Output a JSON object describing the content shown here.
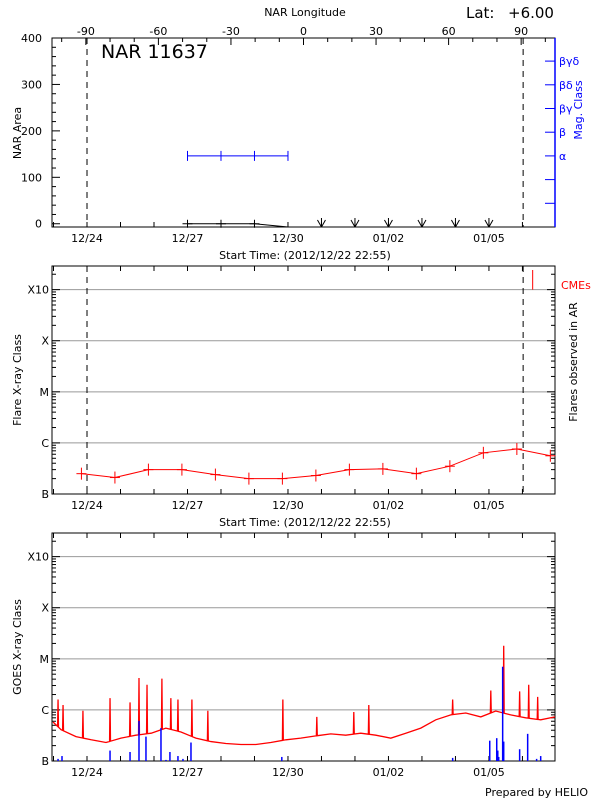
{
  "lat": {
    "label": "Lat:",
    "value": "+6.00"
  },
  "footer": "Prepared by HELIO",
  "colors": {
    "axis": "#000000",
    "mag_class": "#0000ff",
    "flares": "#ff0000",
    "goes_flux": "#ff0000",
    "goes_flares": "#0000ff",
    "cme": "#ff0000",
    "grid": "#999999"
  },
  "chart_data": [
    {
      "type": "line",
      "title": "NAR 11637",
      "top_axis_label": "NAR Longitude",
      "longitude_range": [
        -104,
        104
      ],
      "top_ticks": [
        {
          "value": -90,
          "label": "-90"
        },
        {
          "value": -60,
          "label": "-60"
        },
        {
          "value": -30,
          "label": "-30"
        },
        {
          "value": 0,
          "label": "0"
        },
        {
          "value": 30,
          "label": "30"
        },
        {
          "value": 60,
          "label": "60"
        },
        {
          "value": 90,
          "label": "90"
        }
      ],
      "xlabel": "Start Time: (2012/12/22 22:55)",
      "xlim": [
        "2012-12-22T22:55",
        "2013-01-06T23:20"
      ],
      "x_ticks": [
        {
          "date": "2012-12-24T00:00",
          "label": "12/24"
        },
        {
          "date": "2012-12-27T00:00",
          "label": "12/27"
        },
        {
          "date": "2012-12-30T00:00",
          "label": "12/30"
        },
        {
          "date": "2013-01-02T00:00",
          "label": "01/02"
        },
        {
          "date": "2013-01-05T00:00",
          "label": "01/05"
        }
      ],
      "ylabel": "NAR Area",
      "ylim": [
        -7,
        400
      ],
      "y_ticks": [
        {
          "value": 0,
          "label": "0"
        },
        {
          "value": 100,
          "label": "100"
        },
        {
          "value": 200,
          "label": "200"
        },
        {
          "value": 300,
          "label": "300"
        },
        {
          "value": 400,
          "label": "400"
        }
      ],
      "right_ylabel": "Mag. Class",
      "mag_class_ticks": [
        {
          "level": 3,
          "label": "α"
        },
        {
          "level": 4,
          "label": "β"
        },
        {
          "level": 5,
          "label": "βγ"
        },
        {
          "level": 6,
          "label": "βδ"
        },
        {
          "level": 7,
          "label": "βγδ"
        }
      ],
      "area_series": [
        {
          "date": "2012-12-27T00:00",
          "value": 0
        },
        {
          "date": "2012-12-28T00:00",
          "value": 0
        },
        {
          "date": "2012-12-29T00:00",
          "value": 0
        },
        {
          "date": "2012-12-30T00:00",
          "value": -7
        }
      ],
      "mag_class_series": [
        {
          "date": "2012-12-27T00:00",
          "class": "α"
        },
        {
          "date": "2012-12-28T00:00",
          "class": "α"
        },
        {
          "date": "2012-12-29T00:00",
          "class": "α"
        },
        {
          "date": "2012-12-30T00:00",
          "class": "α"
        }
      ],
      "no_data_dates": [
        "2012-12-31T00:00",
        "2013-01-01T00:00",
        "2013-01-02T00:00",
        "2013-01-03T00:00",
        "2013-01-04T00:00",
        "2013-01-05T00:00"
      ],
      "reference_lines": [
        "2012-12-24T00:00",
        "2013-01-06T00:30"
      ]
    },
    {
      "type": "line",
      "xlabel": "Start Time: (2012/12/22 22:55)",
      "xlim": [
        "2012-12-22T22:55",
        "2013-01-06T23:20"
      ],
      "x_ticks": [
        {
          "date": "2012-12-24T00:00",
          "label": "12/24"
        },
        {
          "date": "2012-12-27T00:00",
          "label": "12/27"
        },
        {
          "date": "2012-12-30T00:00",
          "label": "12/30"
        },
        {
          "date": "2013-01-02T00:00",
          "label": "01/02"
        },
        {
          "date": "2013-01-05T00:00",
          "label": "01/05"
        }
      ],
      "ylabel": "Flare X-ray Class",
      "yscale": "log",
      "ylim": [
        1e-07,
        0.0029
      ],
      "y_ticks": [
        {
          "value": 1e-07,
          "label": "B"
        },
        {
          "value": 1e-06,
          "label": "C"
        },
        {
          "value": 1e-05,
          "label": "M"
        },
        {
          "value": 0.0001,
          "label": "X"
        },
        {
          "value": 0.001,
          "label": "X10"
        }
      ],
      "grid": true,
      "right_ylabel": "Flares observed in AR",
      "cme_label": "CMEs",
      "cmes": [
        "2013-01-06T07:20"
      ],
      "series": [
        {
          "date": "2012-12-23T20:00",
          "flux": 2.5e-07
        },
        {
          "date": "2012-12-24T20:00",
          "flux": 2.1e-07
        },
        {
          "date": "2012-12-25T20:00",
          "flux": 3e-07
        },
        {
          "date": "2012-12-26T20:00",
          "flux": 3e-07
        },
        {
          "date": "2012-12-27T20:00",
          "flux": 2.4e-07
        },
        {
          "date": "2012-12-28T20:00",
          "flux": 2e-07
        },
        {
          "date": "2012-12-29T20:00",
          "flux": 2e-07
        },
        {
          "date": "2012-12-30T20:00",
          "flux": 2.3e-07
        },
        {
          "date": "2012-12-31T20:00",
          "flux": 3e-07
        },
        {
          "date": "2013-01-01T20:00",
          "flux": 3.1e-07
        },
        {
          "date": "2013-01-02T20:00",
          "flux": 2.5e-07
        },
        {
          "date": "2013-01-03T20:00",
          "flux": 3.5e-07
        },
        {
          "date": "2013-01-04T20:00",
          "flux": 6.4e-07
        },
        {
          "date": "2013-01-05T20:00",
          "flux": 7.6e-07
        },
        {
          "date": "2013-01-06T20:00",
          "flux": 5.6e-07
        }
      ],
      "reference_lines": [
        "2012-12-24T00:00",
        "2013-01-06T00:30"
      ]
    },
    {
      "type": "line",
      "xlim": [
        "2012-12-22T22:55",
        "2013-01-06T23:20"
      ],
      "x_ticks": [
        {
          "date": "2012-12-24T00:00",
          "label": "12/24"
        },
        {
          "date": "2012-12-27T00:00",
          "label": "12/27"
        },
        {
          "date": "2012-12-30T00:00",
          "label": "12/30"
        },
        {
          "date": "2013-01-02T00:00",
          "label": "01/02"
        },
        {
          "date": "2013-01-05T00:00",
          "label": "01/05"
        }
      ],
      "ylabel": "GOES X-ray Class",
      "yscale": "log",
      "ylim": [
        1e-07,
        0.0029
      ],
      "y_ticks": [
        {
          "value": 1e-07,
          "label": "B"
        },
        {
          "value": 1e-06,
          "label": "C"
        },
        {
          "value": 1e-05,
          "label": "M"
        },
        {
          "value": 0.0001,
          "label": "X"
        },
        {
          "value": 0.001,
          "label": "X10"
        }
      ],
      "grid": true,
      "flux_background": [
        [
          "2012-12-22T23:40",
          5.8e-07
        ],
        [
          "2012-12-23T05:25",
          4.1e-07
        ],
        [
          "2012-12-23T16:05",
          3e-07
        ],
        [
          "2012-12-24T03:00",
          2.6e-07
        ],
        [
          "2012-12-24T13:35",
          2.3e-07
        ],
        [
          "2012-12-25T00:20",
          2.8e-07
        ],
        [
          "2012-12-25T11:00",
          3.2e-07
        ],
        [
          "2012-12-25T22:00",
          3.5e-07
        ],
        [
          "2012-12-26T08:30",
          4.4e-07
        ],
        [
          "2012-12-26T19:20",
          3.7e-07
        ],
        [
          "2012-12-27T06:00",
          2.8e-07
        ],
        [
          "2012-12-27T16:50",
          2.4e-07
        ],
        [
          "2012-12-28T03:30",
          2.2e-07
        ],
        [
          "2012-12-28T14:20",
          2.1e-07
        ],
        [
          "2012-12-29T01:00",
          2.1e-07
        ],
        [
          "2012-12-29T11:40",
          2.3e-07
        ],
        [
          "2012-12-29T22:30",
          2.6e-07
        ],
        [
          "2012-12-30T09:10",
          2.8e-07
        ],
        [
          "2012-12-30T20:00",
          3.1e-07
        ],
        [
          "2012-12-31T06:40",
          3.4e-07
        ],
        [
          "2012-12-31T17:25",
          3.2e-07
        ],
        [
          "2013-01-01T04:10",
          3.5e-07
        ],
        [
          "2013-01-01T14:55",
          3.2e-07
        ],
        [
          "2013-01-02T01:40",
          2.8e-07
        ],
        [
          "2013-01-02T12:25",
          3.5e-07
        ],
        [
          "2013-01-02T23:10",
          4.4e-07
        ],
        [
          "2013-01-03T09:55",
          6.4e-07
        ],
        [
          "2013-01-03T20:40",
          8e-07
        ],
        [
          "2013-01-04T07:25",
          8.7e-07
        ],
        [
          "2013-01-04T18:10",
          7.3e-07
        ],
        [
          "2013-01-05T04:50",
          9.5e-07
        ],
        [
          "2013-01-05T15:35",
          8e-07
        ],
        [
          "2013-01-06T02:20",
          7e-07
        ],
        [
          "2013-01-06T13:05",
          6.4e-07
        ],
        [
          "2013-01-06T23:20",
          7.3e-07
        ]
      ],
      "flux_peaks": [
        [
          "2012-12-23T03:15",
          1.6e-06
        ],
        [
          "2012-12-23T06:50",
          1.25e-06
        ],
        [
          "2012-12-23T21:05",
          9.6e-07
        ],
        [
          "2012-12-24T16:30",
          1.7e-06
        ],
        [
          "2012-12-25T06:50",
          1.4e-06
        ],
        [
          "2012-12-25T13:15",
          4.2e-06
        ],
        [
          "2012-12-25T19:00",
          3.1e-06
        ],
        [
          "2012-12-26T05:40",
          4.1e-06
        ],
        [
          "2012-12-26T12:05",
          1.7e-06
        ],
        [
          "2012-12-26T17:10",
          1.6e-06
        ],
        [
          "2012-12-27T03:10",
          1.6e-06
        ],
        [
          "2012-12-27T14:35",
          9.6e-07
        ],
        [
          "2012-12-29T20:20",
          1.6e-06
        ],
        [
          "2012-12-30T20:40",
          7.3e-07
        ],
        [
          "2012-12-31T23:10",
          9.1e-07
        ],
        [
          "2013-01-01T09:55",
          1.25e-06
        ],
        [
          "2013-01-03T22:00",
          1.6e-06
        ],
        [
          "2013-01-05T01:20",
          2.4e-06
        ],
        [
          "2013-01-05T10:35",
          1.8e-05
        ],
        [
          "2013-01-05T22:00",
          2.3e-06
        ],
        [
          "2013-01-06T04:30",
          3.1e-06
        ],
        [
          "2013-01-06T10:55",
          1.8e-06
        ]
      ],
      "flares": [
        [
          "2012-12-23T03:15",
          1.1e-07
        ],
        [
          "2012-12-23T06:05",
          1.25e-07
        ],
        [
          "2012-12-24T16:30",
          1.6e-07
        ],
        [
          "2012-12-25T06:50",
          1.5e-07
        ],
        [
          "2012-12-25T13:15",
          6.1e-07
        ],
        [
          "2012-12-25T18:15",
          3e-07
        ],
        [
          "2012-12-26T05:00",
          4.4e-07
        ],
        [
          "2012-12-26T08:35",
          1.05e-07
        ],
        [
          "2012-12-26T11:25",
          1.5e-07
        ],
        [
          "2012-12-26T17:10",
          1.25e-07
        ],
        [
          "2012-12-26T20:45",
          1.1e-07
        ],
        [
          "2012-12-27T02:30",
          2.3e-07
        ],
        [
          "2012-12-29T19:35",
          1.2e-07
        ],
        [
          "2013-01-03T22:00",
          1.15e-07
        ],
        [
          "2013-01-05T00:35",
          2.5e-07
        ],
        [
          "2013-01-05T05:35",
          2.8e-07
        ],
        [
          "2013-01-05T06:20",
          1.6e-07
        ],
        [
          "2013-01-05T07:00",
          1.2e-07
        ],
        [
          "2013-01-05T09:50",
          7e-06
        ],
        [
          "2013-01-05T10:35",
          2.4e-07
        ],
        [
          "2013-01-05T22:00",
          1.7e-07
        ],
        [
          "2013-01-06T03:45",
          3.4e-07
        ],
        [
          "2013-01-06T10:10",
          1.1e-07
        ],
        [
          "2013-01-06T13:05",
          1.25e-07
        ]
      ]
    }
  ]
}
